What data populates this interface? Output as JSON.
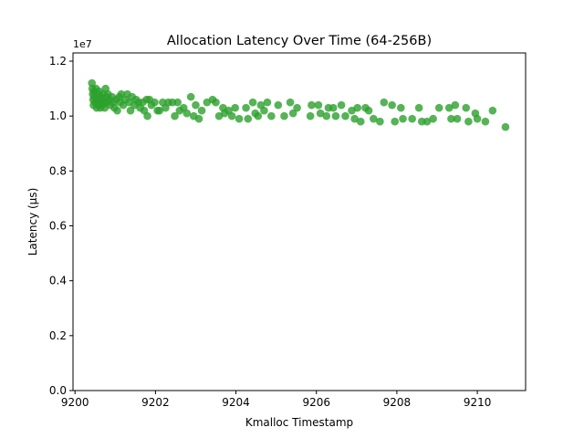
{
  "chart_data": {
    "type": "scatter",
    "title": "Allocation Latency Over Time (64-256B)",
    "xlabel": "Kmalloc Timestamp",
    "ylabel": "Latency (µs)",
    "y_offset_label": "1e7",
    "xlim": [
      9199.95,
      9211.2
    ],
    "ylim": [
      0,
      12300000
    ],
    "xticks": [
      9200,
      9202,
      9204,
      9206,
      9208,
      9210
    ],
    "yticks": [
      0,
      2000000,
      4000000,
      6000000,
      8000000,
      10000000,
      12000000
    ],
    "ytick_labels": [
      "0.0",
      "0.2",
      "0.4",
      "0.6",
      "0.8",
      "1.0",
      "1.2"
    ],
    "grid": false,
    "legend": false,
    "marker_color": "#2ca02c",
    "points": [
      [
        9200.42,
        11200000
      ],
      [
        9200.43,
        11000000
      ],
      [
        9200.44,
        10800000
      ],
      [
        9200.45,
        10600000
      ],
      [
        9200.46,
        10400000
      ],
      [
        9200.47,
        10900000
      ],
      [
        9200.48,
        10700000
      ],
      [
        9200.5,
        10500000
      ],
      [
        9200.52,
        11000000
      ],
      [
        9200.54,
        10300000
      ],
      [
        9200.55,
        10600000
      ],
      [
        9200.57,
        10800000
      ],
      [
        9200.58,
        10400000
      ],
      [
        9200.6,
        10900000
      ],
      [
        9200.62,
        10500000
      ],
      [
        9200.63,
        10300000
      ],
      [
        9200.65,
        10700000
      ],
      [
        9200.66,
        10600000
      ],
      [
        9200.68,
        10400000
      ],
      [
        9200.7,
        10800000
      ],
      [
        9200.72,
        10500000
      ],
      [
        9200.74,
        10300000
      ],
      [
        9200.76,
        11000000
      ],
      [
        9200.78,
        10700000
      ],
      [
        9200.8,
        10500000
      ],
      [
        9200.82,
        10800000
      ],
      [
        9200.85,
        10600000
      ],
      [
        9200.88,
        10400000
      ],
      [
        9200.92,
        10700000
      ],
      [
        9200.95,
        10500000
      ],
      [
        9200.98,
        10300000
      ],
      [
        9201.02,
        10600000
      ],
      [
        9201.05,
        10200000
      ],
      [
        9201.1,
        10700000
      ],
      [
        9201.12,
        10500000
      ],
      [
        9201.15,
        10800000
      ],
      [
        9201.2,
        10400000
      ],
      [
        9201.25,
        10600000
      ],
      [
        9201.3,
        10800000
      ],
      [
        9201.35,
        10500000
      ],
      [
        9201.38,
        10200000
      ],
      [
        9201.42,
        10700000
      ],
      [
        9201.48,
        10400000
      ],
      [
        9201.52,
        10600000
      ],
      [
        9201.58,
        10500000
      ],
      [
        9201.62,
        10300000
      ],
      [
        9201.68,
        10500000
      ],
      [
        9201.72,
        10200000
      ],
      [
        9201.78,
        10600000
      ],
      [
        9201.8,
        10000000
      ],
      [
        9201.85,
        10600000
      ],
      [
        9201.9,
        10400000
      ],
      [
        9201.98,
        10500000
      ],
      [
        9202.05,
        10200000
      ],
      [
        9202.1,
        10200000
      ],
      [
        9202.18,
        10500000
      ],
      [
        9202.25,
        10300000
      ],
      [
        9202.32,
        10500000
      ],
      [
        9202.42,
        10500000
      ],
      [
        9202.48,
        10000000
      ],
      [
        9202.55,
        10500000
      ],
      [
        9202.6,
        10200000
      ],
      [
        9202.7,
        10300000
      ],
      [
        9202.78,
        10100000
      ],
      [
        9202.88,
        10700000
      ],
      [
        9202.95,
        10000000
      ],
      [
        9203.0,
        10400000
      ],
      [
        9203.08,
        9900000
      ],
      [
        9203.15,
        10200000
      ],
      [
        9203.28,
        10500000
      ],
      [
        9203.42,
        10600000
      ],
      [
        9203.5,
        10500000
      ],
      [
        9203.58,
        10000000
      ],
      [
        9203.68,
        10300000
      ],
      [
        9203.72,
        10100000
      ],
      [
        9203.82,
        10200000
      ],
      [
        9203.9,
        10000000
      ],
      [
        9203.98,
        10300000
      ],
      [
        9204.08,
        9900000
      ],
      [
        9204.25,
        10300000
      ],
      [
        9204.3,
        9900000
      ],
      [
        9204.42,
        10500000
      ],
      [
        9204.48,
        10100000
      ],
      [
        9204.55,
        10000000
      ],
      [
        9204.62,
        10400000
      ],
      [
        9204.7,
        10200000
      ],
      [
        9204.78,
        10500000
      ],
      [
        9204.88,
        10000000
      ],
      [
        9205.05,
        10400000
      ],
      [
        9205.2,
        10000000
      ],
      [
        9205.35,
        10500000
      ],
      [
        9205.42,
        10100000
      ],
      [
        9205.52,
        10300000
      ],
      [
        9205.85,
        10000000
      ],
      [
        9205.88,
        10400000
      ],
      [
        9206.05,
        10400000
      ],
      [
        9206.1,
        10100000
      ],
      [
        9206.25,
        10000000
      ],
      [
        9206.3,
        10300000
      ],
      [
        9206.42,
        10300000
      ],
      [
        9206.48,
        10000000
      ],
      [
        9206.62,
        10400000
      ],
      [
        9206.72,
        10000000
      ],
      [
        9206.88,
        10200000
      ],
      [
        9206.95,
        9900000
      ],
      [
        9207.02,
        10300000
      ],
      [
        9207.1,
        9800000
      ],
      [
        9207.22,
        10300000
      ],
      [
        9207.3,
        10200000
      ],
      [
        9207.42,
        9900000
      ],
      [
        9207.58,
        9800000
      ],
      [
        9207.68,
        10500000
      ],
      [
        9207.88,
        10400000
      ],
      [
        9207.95,
        9800000
      ],
      [
        9208.1,
        10300000
      ],
      [
        9208.15,
        9900000
      ],
      [
        9208.38,
        9900000
      ],
      [
        9208.55,
        10300000
      ],
      [
        9208.62,
        9800000
      ],
      [
        9208.75,
        9800000
      ],
      [
        9208.9,
        9900000
      ],
      [
        9209.05,
        10300000
      ],
      [
        9209.3,
        10300000
      ],
      [
        9209.35,
        9900000
      ],
      [
        9209.45,
        10400000
      ],
      [
        9209.5,
        9900000
      ],
      [
        9209.72,
        10300000
      ],
      [
        9209.78,
        9800000
      ],
      [
        9209.95,
        10100000
      ],
      [
        9210.0,
        9900000
      ],
      [
        9210.2,
        9800000
      ],
      [
        9210.38,
        10200000
      ],
      [
        9210.7,
        9600000
      ]
    ]
  }
}
